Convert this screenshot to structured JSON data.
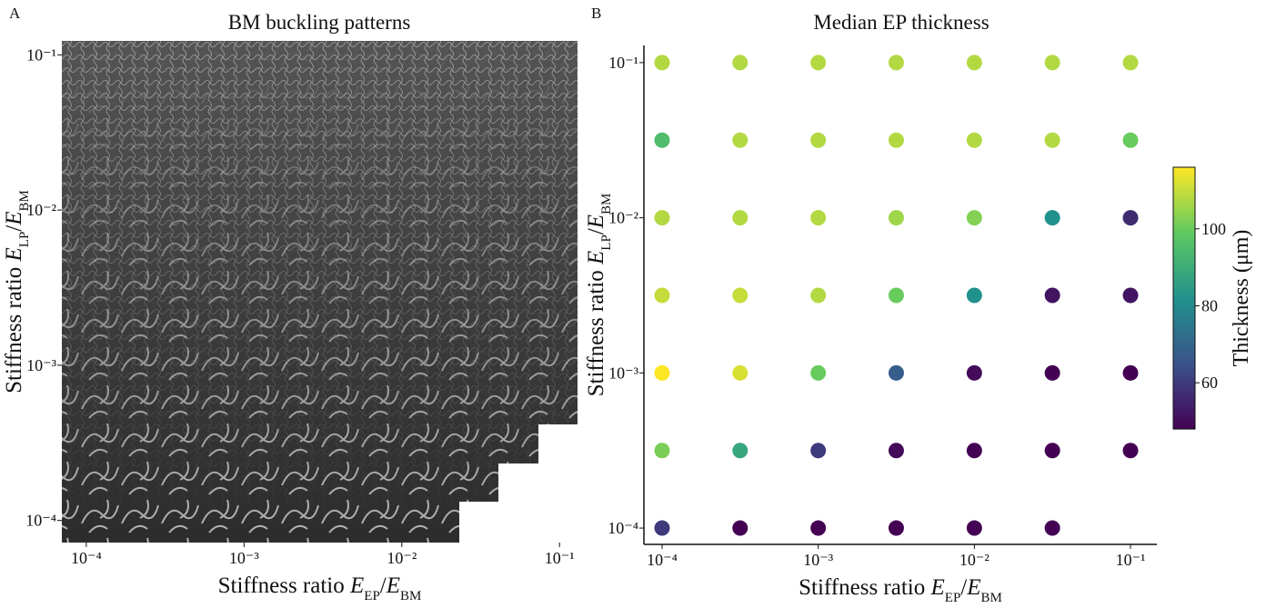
{
  "chart_data": [
    {
      "type": "image",
      "panel_label": "A",
      "title": "BM buckling patterns",
      "x_label": [
        "Stiffness ratio ",
        "E",
        "EP",
        "/",
        "E",
        "BM"
      ],
      "y_label": [
        "Stiffness ratio ",
        "E",
        "LP",
        "/",
        "E",
        "BM"
      ],
      "log_x": true,
      "log_y": true,
      "xlim": [
        7e-05,
        0.13
      ],
      "ylim": [
        7.2e-05,
        0.123
      ],
      "xticks": [
        {
          "value": 0.0001,
          "label": "10⁻⁴"
        },
        {
          "value": 0.001,
          "label": "10⁻³"
        },
        {
          "value": 0.01,
          "label": "10⁻²"
        },
        {
          "value": 0.1,
          "label": "10⁻¹"
        }
      ],
      "yticks": [
        {
          "value": 0.0001,
          "label": "10⁻⁴"
        },
        {
          "value": 0.001,
          "label": "10⁻³"
        },
        {
          "value": 0.01,
          "label": "10⁻²"
        },
        {
          "value": 0.1,
          "label": "10⁻¹"
        }
      ]
    },
    {
      "type": "scatter",
      "panel_label": "B",
      "title": "Median EP thickness",
      "x_label": [
        "Stiffness ratio ",
        "E",
        "EP",
        "/",
        "E",
        "BM"
      ],
      "y_label": [
        "Stiffness ratio ",
        "E",
        "LP",
        "/",
        "E",
        "BM"
      ],
      "colorbar_label": "Thickness (μm)",
      "colormap": "viridis",
      "log_x": true,
      "log_y": true,
      "xlim": [
        7.65e-05,
        0.1475
      ],
      "ylim": [
        7.85e-05,
        0.129
      ],
      "clim": [
        48,
        116
      ],
      "cticks": [
        60,
        80,
        100
      ],
      "xticks": [
        {
          "value": 0.0001,
          "label": "10⁻⁴"
        },
        {
          "value": 0.001,
          "label": "10⁻³"
        },
        {
          "value": 0.01,
          "label": "10⁻²"
        },
        {
          "value": 0.1,
          "label": "10⁻¹"
        }
      ],
      "yticks": [
        {
          "value": 0.0001,
          "label": "10⁻⁴"
        },
        {
          "value": 0.001,
          "label": "10⁻³"
        },
        {
          "value": 0.01,
          "label": "10⁻²"
        },
        {
          "value": 0.1,
          "label": "10⁻¹"
        }
      ],
      "x": [
        0.0001,
        0.000316,
        0.001,
        0.00316,
        0.01,
        0.0316,
        0.1,
        0.0001,
        0.000316,
        0.001,
        0.00316,
        0.01,
        0.0316,
        0.1,
        0.0001,
        0.000316,
        0.001,
        0.00316,
        0.01,
        0.0316,
        0.1,
        0.0001,
        0.000316,
        0.001,
        0.00316,
        0.01,
        0.0316,
        0.1,
        0.0001,
        0.000316,
        0.001,
        0.00316,
        0.01,
        0.0316,
        0.1,
        0.0001,
        0.000316,
        0.001,
        0.00316,
        0.01,
        0.0316,
        0.1,
        0.0001,
        0.000316,
        0.001,
        0.00316,
        0.01,
        0.0316
      ],
      "y": [
        0.1,
        0.1,
        0.1,
        0.1,
        0.1,
        0.1,
        0.1,
        0.0316,
        0.0316,
        0.0316,
        0.0316,
        0.0316,
        0.0316,
        0.0316,
        0.01,
        0.01,
        0.01,
        0.01,
        0.01,
        0.01,
        0.01,
        0.00316,
        0.00316,
        0.00316,
        0.00316,
        0.00316,
        0.00316,
        0.00316,
        0.001,
        0.001,
        0.001,
        0.001,
        0.001,
        0.001,
        0.001,
        0.000316,
        0.000316,
        0.000316,
        0.000316,
        0.000316,
        0.000316,
        0.000316,
        0.0001,
        0.0001,
        0.0001,
        0.0001,
        0.0001,
        0.0001
      ],
      "values": [
        108,
        108,
        108,
        108,
        108,
        108,
        108,
        95,
        108,
        108,
        108,
        108,
        108,
        100,
        108,
        108,
        108,
        106,
        103,
        82,
        57,
        110,
        110,
        108,
        100,
        82,
        52,
        52,
        116,
        112,
        100,
        68,
        50,
        48,
        48,
        102,
        88,
        60,
        50,
        48,
        48,
        48,
        60,
        48,
        48,
        48,
        48,
        48
      ]
    }
  ]
}
